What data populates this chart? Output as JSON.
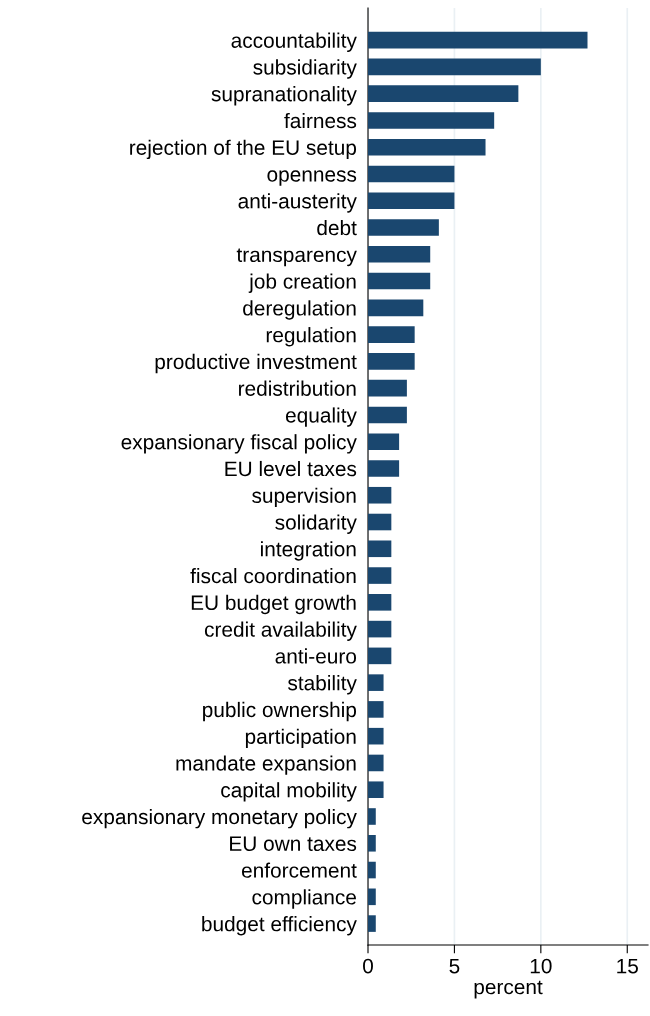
{
  "chart_data": {
    "type": "bar",
    "orientation": "horizontal",
    "xlabel": "percent",
    "categories": [
      "accountability",
      "subsidiarity",
      "supranationality",
      "fairness",
      "rejection of the EU setup",
      "openness",
      "anti-austerity",
      "debt",
      "transparency",
      "job creation",
      "deregulation",
      "regulation",
      "productive investment",
      "redistribution",
      "equality",
      "expansionary fiscal policy",
      "EU level taxes",
      "supervision",
      "solidarity",
      "integration",
      "fiscal coordination",
      "EU budget growth",
      "credit availability",
      "anti-euro",
      "stability",
      "public ownership",
      "participation",
      "mandate expansion",
      "capital mobility",
      "expansionary monetary policy",
      "EU own taxes",
      "enforcement",
      "compliance",
      "budget efficiency"
    ],
    "values": [
      12.7,
      10.0,
      8.7,
      7.3,
      6.8,
      5.0,
      5.0,
      4.1,
      3.6,
      3.6,
      3.2,
      2.7,
      2.7,
      2.25,
      2.25,
      1.8,
      1.8,
      1.35,
      1.35,
      1.35,
      1.35,
      1.35,
      1.35,
      1.35,
      0.9,
      0.9,
      0.9,
      0.9,
      0.9,
      0.45,
      0.45,
      0.45,
      0.45,
      0.45
    ],
    "color": "#1a476f",
    "xlim": [
      0,
      16.2
    ],
    "xticks": [
      0,
      5,
      10,
      15
    ],
    "grid": "x",
    "legend": false
  }
}
